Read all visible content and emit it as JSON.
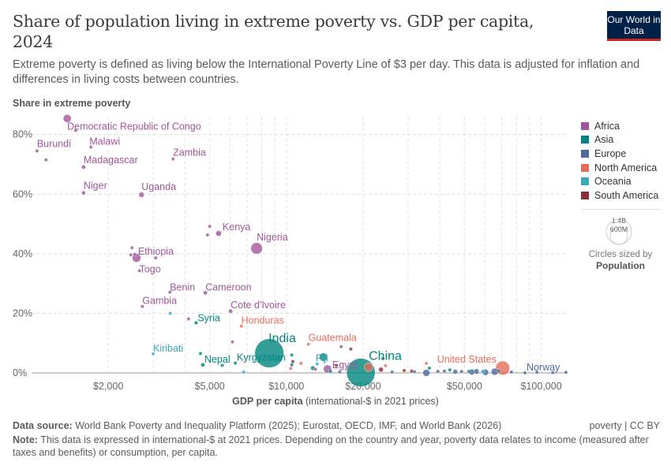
{
  "header": {
    "title": "Share of population living in extreme poverty vs. GDP per capita, 2024",
    "subtitle": "Extreme poverty is defined as living below the International Poverty Line of $3 per day. This data is adjusted for inflation and differences in living costs between countries.",
    "logo": "Our World in Data"
  },
  "legend": {
    "regions": [
      {
        "name": "Africa",
        "color": "#a2559c"
      },
      {
        "name": "Asia",
        "color": "#00847e"
      },
      {
        "name": "Europe",
        "color": "#4c6a9c"
      },
      {
        "name": "North America",
        "color": "#e56e5a"
      },
      {
        "name": "Oceania",
        "color": "#38aaba"
      },
      {
        "name": "South America",
        "color": "#883039"
      }
    ],
    "size_large": "1.4B",
    "size_small": "600M",
    "size_caption": "Circles sized by",
    "size_variable": "Population"
  },
  "footer": {
    "source_label": "Data source:",
    "source": "World Bank Poverty and Inequality Platform (2025); Eurostat, OECD, IMF, and World Bank (2026)",
    "license": "poverty | CC BY",
    "note_label": "Note:",
    "note": "This data is expressed in international-$ at 2021 prices. Depending on the country and year, poverty data relates to income (measured after taxes and benefits) or consumption, per capita."
  },
  "chart_data": {
    "type": "scatter",
    "title": "Share of population living in extreme poverty vs. GDP per capita, 2024",
    "ylabel": "Share in extreme poverty",
    "xlabel_bold": "GDP per capita",
    "xlabel_rest": " (international-$ in 2021 prices)",
    "xscale": "log",
    "xlim": [
      1000,
      126000
    ],
    "ylim": [
      0,
      86
    ],
    "xticks": [
      2000,
      5000,
      10000,
      20000,
      50000,
      100000
    ],
    "xtick_labels": [
      "$2,000",
      "$5,000",
      "$10,000",
      "$20,000",
      "$50,000",
      "$100,000"
    ],
    "yticks": [
      0,
      20,
      40,
      60,
      80
    ],
    "ytick_labels": [
      "0%",
      "20%",
      "40%",
      "60%",
      "80%"
    ],
    "grid": true,
    "legend_position": "right",
    "size_variable": "Population",
    "points": [
      {
        "label": "Democratic Republic of Congo",
        "gdp": 1380,
        "share": 85.4,
        "pop_m": 110,
        "region": "Africa"
      },
      {
        "gdp": 1490,
        "share": 81.4,
        "pop_m": 6,
        "region": "Africa"
      },
      {
        "label": "Burundi",
        "gdp": 1050,
        "share": 74.5,
        "pop_m": 13,
        "region": "Africa"
      },
      {
        "gdp": 1140,
        "share": 71.5,
        "pop_m": 6,
        "region": "Africa"
      },
      {
        "label": "Malawi",
        "gdp": 1710,
        "share": 75.8,
        "pop_m": 21,
        "region": "Africa"
      },
      {
        "label": "Madagascar",
        "gdp": 1600,
        "share": 69.1,
        "pop_m": 31,
        "region": "Africa"
      },
      {
        "label": "Zambia",
        "gdp": 3590,
        "share": 71.8,
        "pop_m": 21,
        "region": "Africa"
      },
      {
        "label": "Niger",
        "gdp": 1600,
        "share": 60.4,
        "pop_m": 27,
        "region": "Africa"
      },
      {
        "label": "Uganda",
        "gdp": 2700,
        "share": 59.8,
        "pop_m": 49,
        "region": "Africa"
      },
      {
        "label": "Kenya",
        "gdp": 5420,
        "share": 46.8,
        "pop_m": 56,
        "region": "Africa"
      },
      {
        "gdp": 5000,
        "share": 49.2,
        "pop_m": 5,
        "region": "Africa"
      },
      {
        "gdp": 4900,
        "share": 46.3,
        "pop_m": 3,
        "region": "Africa"
      },
      {
        "label": "Nigeria",
        "gdp": 7640,
        "share": 41.8,
        "pop_m": 230,
        "region": "Africa"
      },
      {
        "label": "Ethiopia",
        "gdp": 2580,
        "share": 38.6,
        "pop_m": 130,
        "region": "Africa"
      },
      {
        "gdp": 2480,
        "share": 42.0,
        "pop_m": 10,
        "region": "Africa"
      },
      {
        "gdp": 2450,
        "share": 39.6,
        "pop_m": 8,
        "region": "Africa"
      },
      {
        "gdp": 2540,
        "share": 39.8,
        "pop_m": 18,
        "region": "Africa"
      },
      {
        "gdp": 3070,
        "share": 38.6,
        "pop_m": 6,
        "region": "Africa"
      },
      {
        "label": "Togo",
        "gdp": 2650,
        "share": 34.3,
        "pop_m": 9,
        "region": "Africa"
      },
      {
        "label": "Benin",
        "gdp": 3490,
        "share": 27.1,
        "pop_m": 14,
        "region": "Africa"
      },
      {
        "label": "Cameroon",
        "gdp": 4810,
        "share": 26.9,
        "pop_m": 29,
        "region": "Africa"
      },
      {
        "label": "Gambia",
        "gdp": 2720,
        "share": 22.3,
        "pop_m": 3,
        "region": "Africa"
      },
      {
        "label": "Cote d'Ivoire",
        "gdp": 6040,
        "share": 20.7,
        "pop_m": 31,
        "region": "Africa"
      },
      {
        "gdp": 4130,
        "share": 18.1,
        "pop_m": 4,
        "region": "Africa"
      },
      {
        "gdp": 6140,
        "share": 10.4,
        "pop_m": 4,
        "region": "Africa"
      },
      {
        "gdp": 16400,
        "share": 8.8,
        "pop_m": 4,
        "region": "Africa"
      },
      {
        "gdp": 13000,
        "share": 1.2,
        "pop_m": 5,
        "region": "Africa"
      },
      {
        "label": "Egypt",
        "gdp": 14500,
        "share": 1.3,
        "pop_m": 115,
        "region": "Africa"
      },
      {
        "label": "Syria",
        "gdp": 4420,
        "share": 16.8,
        "pop_m": 24,
        "region": "Asia"
      },
      {
        "gdp": 4600,
        "share": 6.5,
        "pop_m": 5,
        "region": "Asia"
      },
      {
        "label": "Nepal",
        "gdp": 4700,
        "share": 2.7,
        "pop_m": 30,
        "region": "Asia"
      },
      {
        "gdp": 5600,
        "share": 2.5,
        "pop_m": 4,
        "region": "Asia"
      },
      {
        "label": "Kyrgyzstan",
        "gdp": 6300,
        "share": 3.3,
        "pop_m": 7,
        "region": "Asia"
      },
      {
        "label": "India",
        "gdp": 8570,
        "share": 6.6,
        "pop_m": 1450,
        "region": "Asia"
      },
      {
        "gdp": 10500,
        "share": 6.0,
        "pop_m": 4,
        "region": "Asia"
      },
      {
        "gdp": 10500,
        "share": 2.7,
        "pop_m": 12,
        "region": "Asia"
      },
      {
        "gdp": 12700,
        "share": 1.6,
        "pop_m": 35,
        "region": "Asia"
      },
      {
        "gdp": 13970,
        "share": 5.3,
        "pop_m": 115,
        "region": "Asia"
      },
      {
        "gdp": 14900,
        "share": 0.5,
        "pop_m": 10,
        "region": "Asia"
      },
      {
        "label": "China",
        "gdp": 19600,
        "share": 0.1,
        "pop_m": 1410,
        "region": "Asia"
      },
      {
        "gdp": 23900,
        "share": 4.8,
        "pop_m": 3,
        "region": "Asia"
      },
      {
        "gdp": 36400,
        "share": 1.6,
        "pop_m": 20,
        "region": "Asia"
      },
      {
        "gdp": 43800,
        "share": 1.0,
        "pop_m": 8,
        "region": "Asia"
      },
      {
        "gdp": 52000,
        "share": 0.5,
        "pop_m": 10,
        "region": "Asia"
      },
      {
        "label": "Kiribati",
        "gdp": 3000,
        "share": 6.4,
        "pop_m": 0.13,
        "region": "Oceania"
      },
      {
        "gdp": 3500,
        "share": 20.0,
        "pop_m": 0.3,
        "region": "Oceania"
      },
      {
        "gdp": 6800,
        "share": 0.3,
        "pop_m": 0.3,
        "region": "Oceania"
      },
      {
        "label": "Fiji",
        "gdp": 13200,
        "share": 3.0,
        "pop_m": 0.9,
        "region": "Oceania"
      },
      {
        "gdp": 59000,
        "share": 0.5,
        "pop_m": 27,
        "region": "Oceania"
      },
      {
        "label": "Honduras",
        "gdp": 6650,
        "share": 15.7,
        "pop_m": 10,
        "region": "North America"
      },
      {
        "label": "Guatemala",
        "gdp": 12200,
        "share": 9.6,
        "pop_m": 18,
        "region": "North America"
      },
      {
        "gdp": 11400,
        "share": 3.2,
        "pop_m": 3,
        "region": "North America"
      },
      {
        "gdp": 10400,
        "share": 1.5,
        "pop_m": 3,
        "region": "North America"
      },
      {
        "gdp": 21000,
        "share": 1.9,
        "pop_m": 130,
        "region": "North America"
      },
      {
        "gdp": 24500,
        "share": 2.4,
        "pop_m": 3,
        "region": "North America"
      },
      {
        "gdp": 35400,
        "share": 3.2,
        "pop_m": 2,
        "region": "North America"
      },
      {
        "label": "United States",
        "gdp": 70600,
        "share": 1.6,
        "pop_m": 340,
        "region": "North America"
      },
      {
        "gdp": 17900,
        "share": 8.0,
        "pop_m": 20,
        "region": "South America"
      },
      {
        "gdp": 10600,
        "share": 3.8,
        "pop_m": 3,
        "region": "South America"
      },
      {
        "gdp": 15700,
        "share": 2.5,
        "pop_m": 18,
        "region": "South America"
      },
      {
        "gdp": 23500,
        "share": 1.1,
        "pop_m": 40,
        "region": "South America"
      },
      {
        "gdp": 29000,
        "share": 0.8,
        "pop_m": 6,
        "region": "South America"
      },
      {
        "gdp": 31000,
        "share": 0.6,
        "pop_m": 4,
        "region": "South America"
      },
      {
        "gdp": 16200,
        "share": 0.3,
        "pop_m": 6,
        "region": "Europe"
      },
      {
        "gdp": 26000,
        "share": 0.3,
        "pop_m": 3,
        "region": "Europe"
      },
      {
        "gdp": 31800,
        "share": 0.4,
        "pop_m": 6,
        "region": "Europe"
      },
      {
        "gdp": 35400,
        "share": 0.0,
        "pop_m": 85,
        "region": "Europe"
      },
      {
        "gdp": 39300,
        "share": 0.5,
        "pop_m": 6,
        "region": "Europe"
      },
      {
        "gdp": 41700,
        "share": 0.6,
        "pop_m": 10,
        "region": "Europe"
      },
      {
        "gdp": 46000,
        "share": 0.4,
        "pop_m": 38,
        "region": "Europe"
      },
      {
        "gdp": 48700,
        "share": 0.5,
        "pop_m": 10,
        "region": "Europe"
      },
      {
        "gdp": 53400,
        "share": 0.3,
        "pop_m": 60,
        "region": "Europe"
      },
      {
        "gdp": 55700,
        "share": 0.5,
        "pop_m": 48,
        "region": "Europe"
      },
      {
        "gdp": 60400,
        "share": 0.2,
        "pop_m": 68,
        "region": "Europe"
      },
      {
        "gdp": 65700,
        "share": 0.4,
        "pop_m": 84,
        "region": "Europe"
      },
      {
        "gdp": 68100,
        "share": 0.6,
        "pop_m": 9,
        "region": "Europe"
      },
      {
        "gdp": 76400,
        "share": 0.3,
        "pop_m": 10,
        "region": "Europe"
      },
      {
        "label": "Norway",
        "gdp": 86300,
        "share": 0.0,
        "pop_m": 5.5,
        "region": "Europe"
      },
      {
        "gdp": 96200,
        "share": 0.2,
        "pop_m": 5,
        "region": "Europe"
      },
      {
        "gdp": 111000,
        "share": 0.1,
        "pop_m": 9,
        "region": "Europe"
      },
      {
        "gdp": 125000,
        "share": 0.2,
        "pop_m": 0.7,
        "region": "Europe"
      }
    ]
  }
}
